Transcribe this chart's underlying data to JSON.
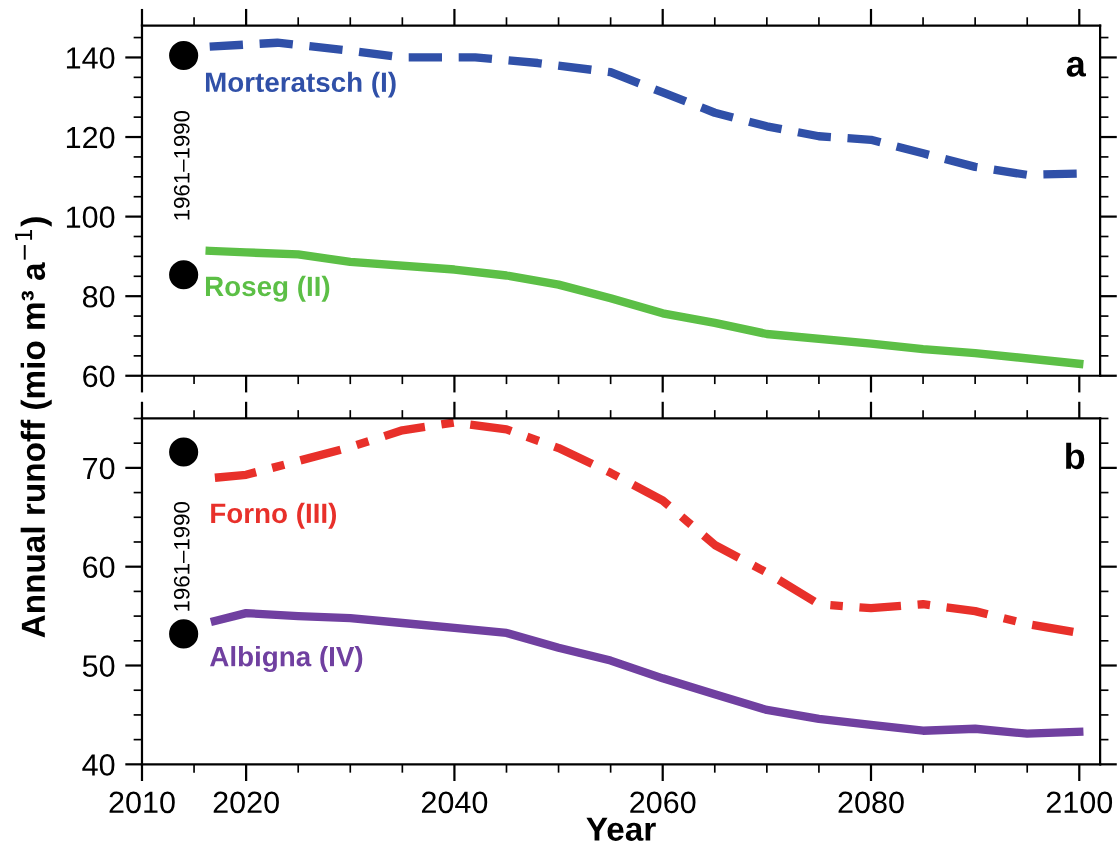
{
  "chart_data": [
    {
      "type": "line",
      "ylabel": "Annual runoff (mio m³ a$^{−1}$)",
      "xlim": [
        2010,
        2102
      ],
      "ylim": [
        60,
        148
      ],
      "xticks": [
        2010,
        2020,
        2040,
        2060,
        2080,
        2100
      ],
      "yticks": [
        60,
        80,
        100,
        120,
        140
      ],
      "tick_labels": "y",
      "grid": false,
      "legend": false,
      "annotations": [
        "a",
        "1961–1990"
      ],
      "series": [
        {
          "name": "Morteratsch (I)",
          "color": "#3050a8",
          "line_style": "dashed",
          "x": [
            2016.5,
            2023,
            2030,
            2035,
            2042,
            2048,
            2055,
            2060,
            2065,
            2070,
            2075,
            2080,
            2085,
            2090,
            2095,
            2100
          ],
          "values": [
            142.7,
            143.7,
            141.7,
            140,
            140,
            138.6,
            136.3,
            131.2,
            126.1,
            122.7,
            120.2,
            119.3,
            115.9,
            112.5,
            110.5,
            110.8
          ]
        },
        {
          "name": "Roseg (II)",
          "color": "#5cbf46",
          "line_style": "solid",
          "x": [
            2016.5,
            2020,
            2025,
            2030,
            2040,
            2045,
            2050,
            2055,
            2060,
            2065,
            2070,
            2080,
            2085,
            2090,
            2100
          ],
          "values": [
            91.4,
            91,
            90.5,
            88.6,
            86.7,
            85.2,
            82.9,
            79.5,
            75.7,
            73.3,
            70.5,
            68.1,
            66.7,
            65.7,
            63
          ]
        },
        {
          "type": "scatter",
          "color": "#000000",
          "marker": "circle",
          "x": [
            2014,
            2014
          ],
          "values": [
            140.5,
            85.4
          ]
        }
      ]
    },
    {
      "type": "line",
      "xlabel": "Year",
      "xlim": [
        2010,
        2102
      ],
      "ylim": [
        40,
        75
      ],
      "xticks": [
        2010,
        2020,
        2040,
        2060,
        2080,
        2100
      ],
      "yticks": [
        40,
        50,
        60,
        70
      ],
      "grid": false,
      "legend": false,
      "annotations": [
        "b",
        "1961–1990"
      ],
      "series": [
        {
          "name": "Forno (III)",
          "color": "#e8302a",
          "line_style": "dashdot",
          "x": [
            2017,
            2020,
            2025,
            2030,
            2035,
            2040,
            2045,
            2050,
            2055,
            2060,
            2065,
            2070,
            2075,
            2080,
            2085,
            2090,
            2095,
            2100
          ],
          "values": [
            69.0,
            69.3,
            70.7,
            72.1,
            73.8,
            74.6,
            73.9,
            72,
            69.5,
            66.7,
            62.2,
            59.4,
            56.2,
            55.8,
            56.2,
            55.5,
            54.2,
            53.3
          ]
        },
        {
          "name": "Albigna (IV)",
          "color": "#7040a0",
          "line_style": "solid",
          "x": [
            2017,
            2020,
            2025,
            2030,
            2035,
            2040,
            2045,
            2050,
            2055,
            2060,
            2065,
            2070,
            2075,
            2080,
            2085,
            2090,
            2095,
            2100
          ],
          "values": [
            54.5,
            55.3,
            55,
            54.8,
            54.3,
            53.8,
            53.3,
            51.8,
            50.5,
            48.7,
            47.1,
            45.5,
            44.6,
            44,
            43.4,
            43.6,
            43.1,
            43.3
          ]
        },
        {
          "type": "scatter",
          "color": "#000000",
          "marker": "circle",
          "x": [
            2014,
            2014
          ],
          "values": [
            71.6,
            53.2
          ]
        }
      ]
    }
  ]
}
